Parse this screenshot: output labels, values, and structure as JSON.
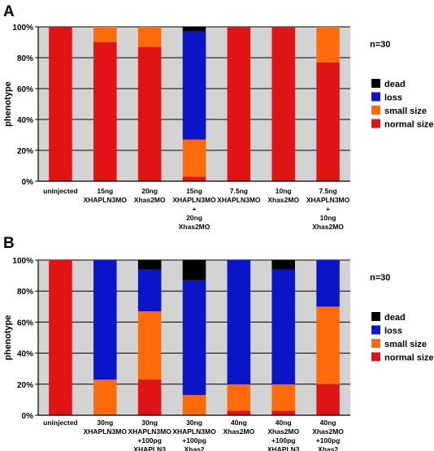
{
  "colors": {
    "dead": "#000000",
    "loss": "#0a14c8",
    "small size": "#ff6a0a",
    "normal size": "#e01414",
    "background": "#d3d3d3"
  },
  "chart_data": [
    {
      "panel": "A",
      "type": "bar",
      "stacked": true,
      "ylabel": "phenotype",
      "ylim": [
        0,
        100
      ],
      "yticks": [
        "0%",
        "20%",
        "40%",
        "60%",
        "80%",
        "100%"
      ],
      "note": "n=30",
      "legend_position": "right",
      "categories": [
        [
          "uninjected"
        ],
        [
          "15ng",
          "XHAPLN3MO"
        ],
        [
          "20ng",
          "Xhas2MO"
        ],
        [
          "15ng",
          "XHAPLN3MO",
          "+",
          "20ng",
          "Xhas2MO"
        ],
        [
          "7.5ng",
          "XHAPLN3MO"
        ],
        [
          "10ng",
          "Xhas2MO"
        ],
        [
          "7.5ng",
          "XHAPLN3MO",
          "+",
          "10ng",
          "Xhas2MO"
        ]
      ],
      "series": [
        {
          "name": "normal size",
          "values": [
            100,
            90,
            87,
            3,
            100,
            100,
            77
          ]
        },
        {
          "name": "small size",
          "values": [
            0,
            10,
            13,
            24,
            0,
            0,
            23
          ]
        },
        {
          "name": "loss",
          "values": [
            0,
            0,
            0,
            70,
            0,
            0,
            0
          ]
        },
        {
          "name": "dead",
          "values": [
            0,
            0,
            0,
            3,
            0,
            0,
            0
          ]
        }
      ],
      "legend": [
        "dead",
        "loss",
        "small size",
        "normal size"
      ]
    },
    {
      "panel": "B",
      "type": "bar",
      "stacked": true,
      "ylabel": "phenotype",
      "ylim": [
        0,
        100
      ],
      "yticks": [
        "0%",
        "20%",
        "40%",
        "60%",
        "80%",
        "100%"
      ],
      "note": "n=30",
      "legend_position": "right",
      "categories": [
        [
          "uninjected"
        ],
        [
          "30ng",
          "XHAPLN3MO"
        ],
        [
          "30ng",
          "XHAPLN3MO",
          "+100pg",
          "XHAPLN3"
        ],
        [
          "30ng",
          "XHAPLN3MO",
          "+100pg",
          "Xhas2"
        ],
        [
          "40ng",
          "Xhas2MO"
        ],
        [
          "40ng",
          "Xhas2MO",
          "+100pg",
          "XHAPLN3"
        ],
        [
          "40ng",
          "Xhas2MO",
          "+100pg",
          "Xhas2"
        ]
      ],
      "series": [
        {
          "name": "normal size",
          "values": [
            100,
            0,
            23,
            0,
            3,
            3,
            20
          ]
        },
        {
          "name": "small size",
          "values": [
            0,
            23,
            44,
            13,
            17,
            17,
            50
          ]
        },
        {
          "name": "loss",
          "values": [
            0,
            77,
            27,
            74,
            80,
            74,
            30
          ]
        },
        {
          "name": "dead",
          "values": [
            0,
            0,
            6,
            13,
            0,
            6,
            0
          ]
        }
      ],
      "legend": [
        "dead",
        "loss",
        "small size",
        "normal size"
      ]
    }
  ]
}
